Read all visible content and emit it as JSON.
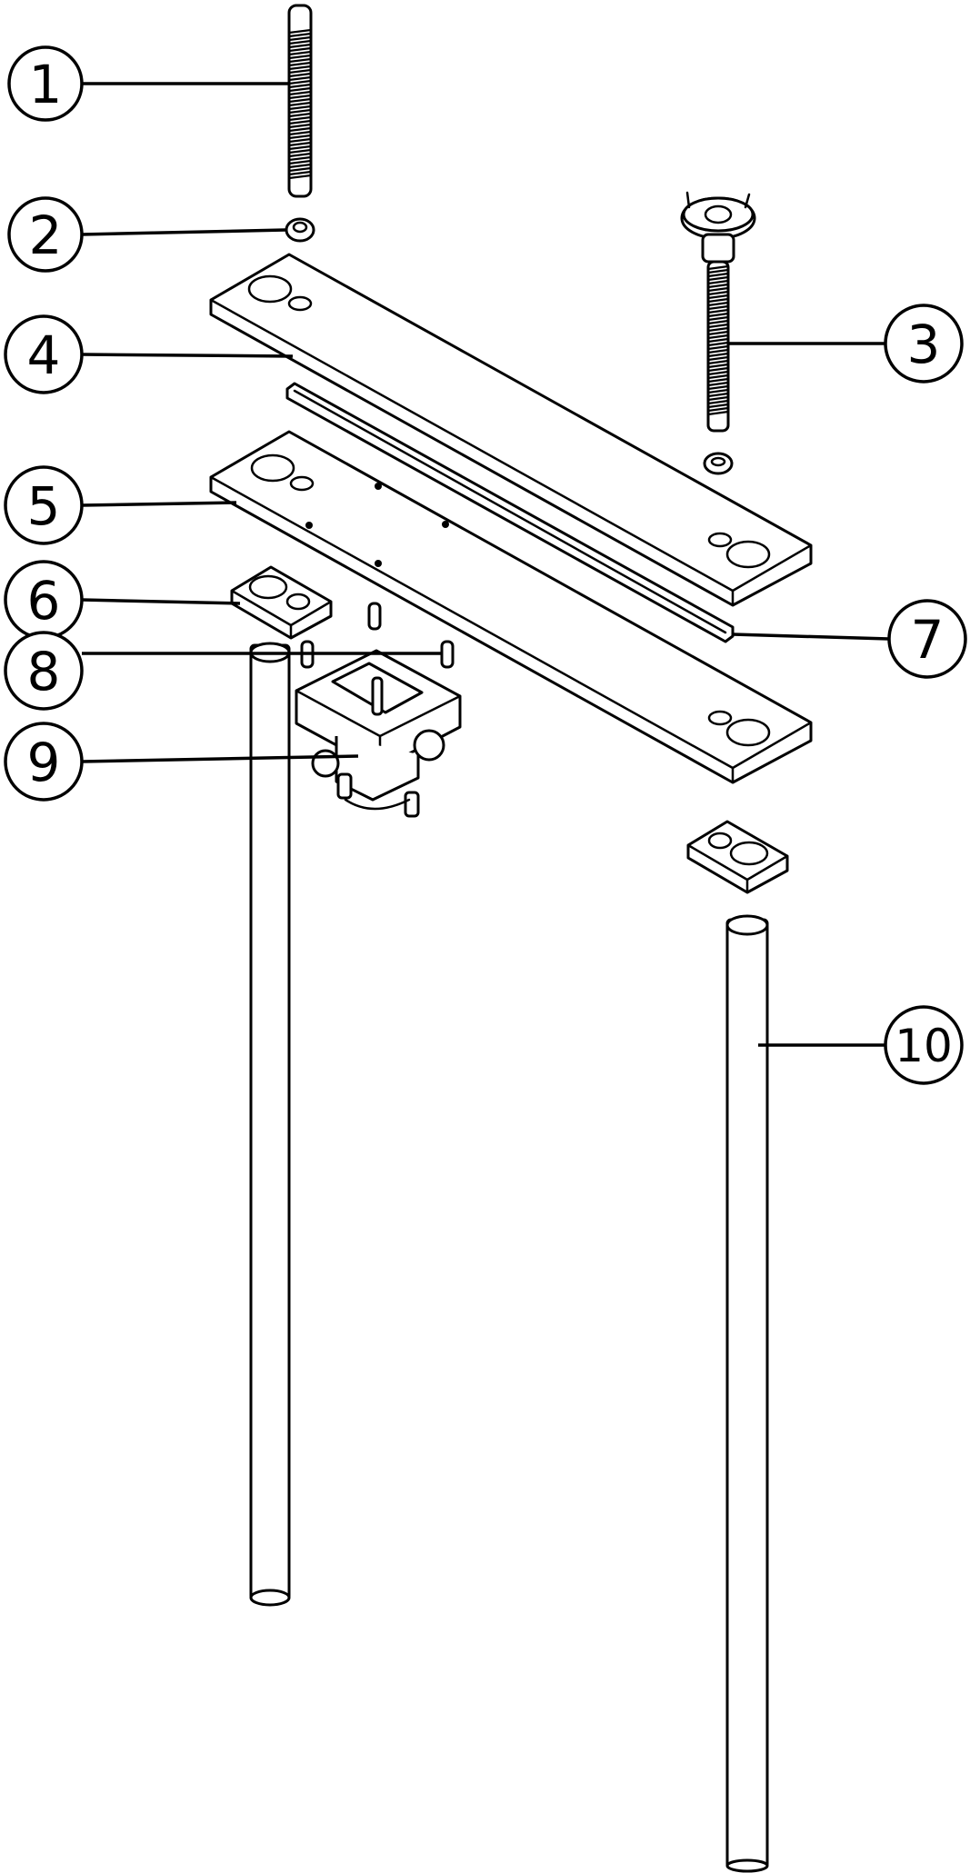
{
  "callouts": [
    {
      "id": "callout-1",
      "label": "1"
    },
    {
      "id": "callout-2",
      "label": "2"
    },
    {
      "id": "callout-3",
      "label": "3"
    },
    {
      "id": "callout-4",
      "label": "4"
    },
    {
      "id": "callout-5",
      "label": "5"
    },
    {
      "id": "callout-6",
      "label": "6"
    },
    {
      "id": "callout-7",
      "label": "7"
    },
    {
      "id": "callout-8",
      "label": "8"
    },
    {
      "id": "callout-9",
      "label": "9"
    },
    {
      "id": "callout-10",
      "label": "10"
    }
  ]
}
